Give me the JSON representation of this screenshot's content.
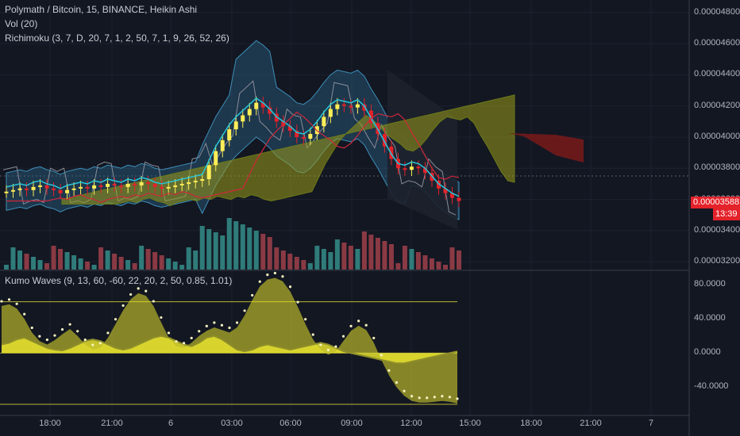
{
  "legend": {
    "symbol": "Polymath / Bitcoin, 15, BINANCE, Heikin Ashi",
    "volume": "Vol (20)",
    "richimoku": "Richimoku (3, 7, D, 20, 7, 1, 2, 50, 7, 1, 9, 26, 52, 26)",
    "oscillator": "Kumo Waves (9, 13, 60, -60, 22, 20, 2, 50, 0.85, 1.01)"
  },
  "price_axis": {
    "ticks": [
      "0.00004800",
      "0.00004600",
      "0.00004400",
      "0.00004200",
      "0.00004000",
      "0.00003800",
      "0.00003600",
      "0.00003400",
      "0.00003200"
    ],
    "last_price": "0.00003588",
    "countdown": "13:39"
  },
  "osc_axis": {
    "ticks": [
      "80.0000",
      "40.0000",
      "0.0000",
      "-40.0000"
    ]
  },
  "time_axis": {
    "ticks": [
      "18:00",
      "21:00",
      "6",
      "03:00",
      "06:00",
      "09:00",
      "12:00",
      "15:00",
      "18:00",
      "21:00",
      "7"
    ]
  },
  "colors": {
    "background": "#131722",
    "bull_candle": "#ffee58",
    "bear_candle": "#e4222a",
    "band_fill": "#2a5f80",
    "cloud_fill": "#9a9a18",
    "bear_cloud_fill": "#7a1a1a",
    "tenkan": "#26c6da",
    "kijun": "#d0283a",
    "vol_up": "#2f7c7a",
    "vol_down": "#8a3a44",
    "osc_fill": "#e6e22e"
  },
  "chart_data": [
    {
      "type": "candlestick",
      "title": "Polymath / Bitcoin, 15, BINANCE, Heikin Ashi",
      "ylim": [
        3.15e-05,
        4.88e-05
      ],
      "xlim": [
        0,
        1
      ],
      "close_series": [
        3.65e-05,
        3.66e-05,
        3.67e-05,
        3.66e-05,
        3.68e-05,
        3.69e-05,
        3.67e-05,
        3.66e-05,
        3.64e-05,
        3.66e-05,
        3.67e-05,
        3.68e-05,
        3.67e-05,
        3.69e-05,
        3.68e-05,
        3.7e-05,
        3.69e-05,
        3.68e-05,
        3.7e-05,
        3.69e-05,
        3.71e-05,
        3.7e-05,
        3.68e-05,
        3.67e-05,
        3.68e-05,
        3.69e-05,
        3.7e-05,
        3.71e-05,
        3.72e-05,
        3.73e-05,
        3.82e-05,
        3.91e-05,
        3.98e-05,
        4.05e-05,
        4.1e-05,
        4.14e-05,
        4.18e-05,
        4.22e-05,
        4.19e-05,
        4.15e-05,
        4.1e-05,
        4.07e-05,
        4.04e-05,
        4e-05,
        3.99e-05,
        4.02e-05,
        4.07e-05,
        4.13e-05,
        4.18e-05,
        4.21e-05,
        4.2e-05,
        4.19e-05,
        4.21e-05,
        4.17e-05,
        4.09e-05,
        4.02e-05,
        3.94e-05,
        3.86e-05,
        3.8e-05,
        3.79e-05,
        3.81e-05,
        3.8e-05,
        3.77e-05,
        3.72e-05,
        3.67e-05,
        3.64e-05,
        3.61e-05,
        3.59e-05
      ],
      "last_value": 3.588e-05
    },
    {
      "type": "area",
      "name": "Kumo Waves",
      "ylim": [
        -72,
        94
      ],
      "reference_lines": [
        60,
        0,
        -60
      ],
      "wave": [
        55,
        57,
        52,
        40,
        24,
        14,
        10,
        15,
        22,
        28,
        20,
        10,
        4,
        6,
        18,
        34,
        50,
        63,
        70,
        67,
        55,
        36,
        18,
        8,
        6,
        12,
        20,
        26,
        30,
        27,
        24,
        30,
        44,
        62,
        78,
        86,
        88,
        84,
        72,
        54,
        34,
        16,
        4,
        -2,
        2,
        14,
        26,
        32,
        27,
        12,
        -8,
        -26,
        -40,
        -50,
        -56,
        -58,
        -58,
        -57,
        -56,
        -57,
        -59
      ],
      "fast": [
        10,
        12,
        16,
        18,
        14,
        10,
        6,
        4,
        3,
        6,
        10,
        14,
        16,
        14,
        10,
        6,
        4,
        6,
        10,
        14,
        18,
        20,
        18,
        14,
        10,
        8,
        12,
        18,
        20,
        16,
        10,
        4,
        2,
        4,
        8,
        10,
        8,
        6,
        4,
        6,
        8,
        10,
        12,
        10,
        6,
        2,
        0,
        -2,
        -4,
        -6,
        -8,
        -10,
        -12,
        -12,
        -10,
        -8,
        -6,
        -4,
        -2,
        0,
        2
      ]
    }
  ]
}
